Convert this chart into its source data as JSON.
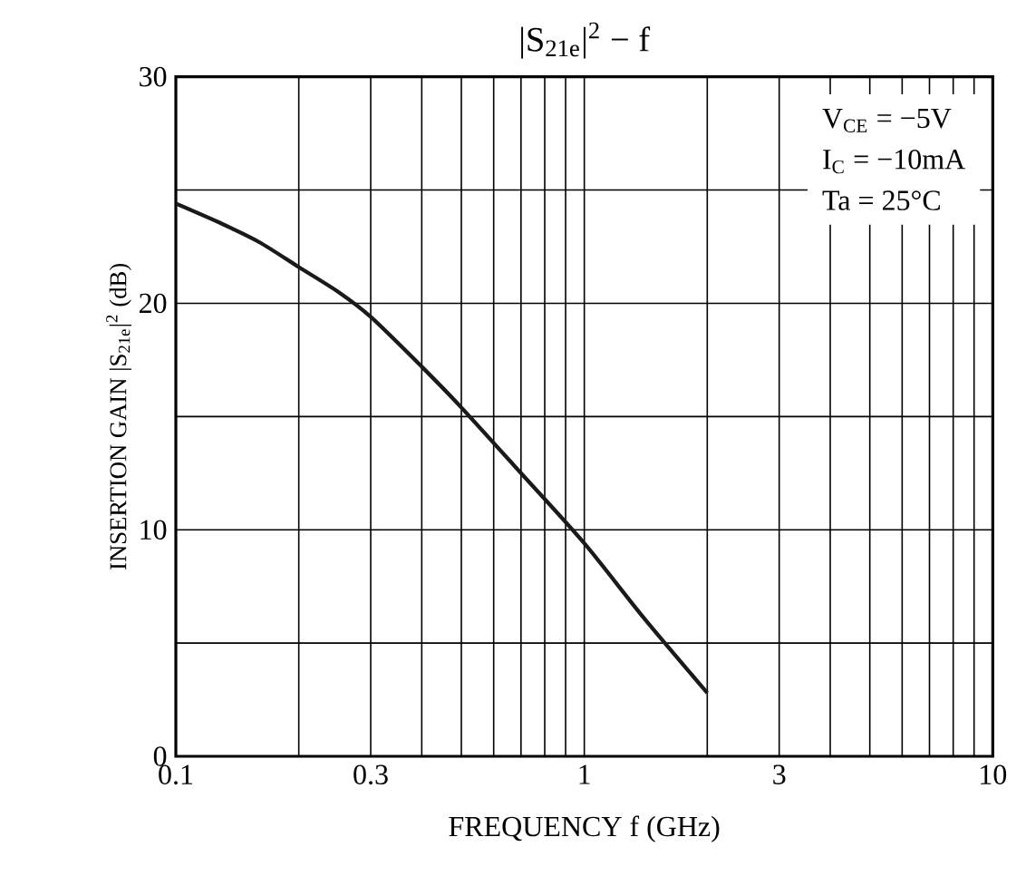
{
  "chart_data": {
    "type": "line",
    "title": "|S$_{21e}$|$^{2}$ − f",
    "xlabel": "FREQUENCY  f  (GHz)",
    "ylabel": "INSERTION GAIN |S$_{21e}$|$^{2}$  (dB)",
    "annotations": [
      "V$_{CE}$ = −5V",
      "I$_{C}$ = −10mA",
      "Ta = 25°C"
    ],
    "log": "x",
    "grid": true,
    "xlim": [
      0.1,
      10
    ],
    "ylim": [
      0,
      30
    ],
    "xticks": [
      0.1,
      {
        "value": 0.2,
        "label": null
      },
      0.3,
      {
        "value": 0.4,
        "label": null
      },
      {
        "value": 0.5,
        "label": null
      },
      {
        "value": 0.6,
        "label": null
      },
      {
        "value": 0.7,
        "label": null
      },
      {
        "value": 0.8,
        "label": null
      },
      {
        "value": 0.9,
        "label": null
      },
      1,
      {
        "value": 2,
        "label": null
      },
      3,
      {
        "value": 4,
        "label": null
      },
      {
        "value": 5,
        "label": null
      },
      {
        "value": 6,
        "label": null
      },
      {
        "value": 7,
        "label": null
      },
      {
        "value": 8,
        "label": null
      },
      {
        "value": 9,
        "label": null
      },
      10
    ],
    "yticks": [
      0,
      {
        "value": 5,
        "label": null
      },
      10,
      {
        "value": 15,
        "label": null
      },
      20,
      {
        "value": 25,
        "label": null
      },
      30
    ],
    "series": [
      {
        "color": "#1a1a1a",
        "x": [
          0.1,
          0.13,
          0.16,
          0.2,
          0.25,
          0.3,
          0.4,
          0.5,
          0.7,
          1,
          1.4,
          2
        ],
        "values": [
          24.4,
          23.5,
          22.7,
          21.6,
          20.5,
          19.4,
          17.2,
          15.4,
          12.5,
          9.4,
          6.1,
          2.8
        ]
      }
    ]
  }
}
